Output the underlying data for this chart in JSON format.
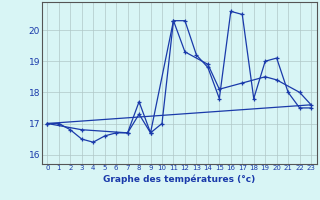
{
  "xlabel": "Graphe des températures (°c)",
  "bg_color": "#d8f5f5",
  "grid_color": "#b0c8c8",
  "line_color": "#1a3aaa",
  "spine_color": "#555555",
  "x_ticks": [
    0,
    1,
    2,
    3,
    4,
    5,
    6,
    7,
    8,
    9,
    10,
    11,
    12,
    13,
    14,
    15,
    16,
    17,
    18,
    19,
    20,
    21,
    22,
    23
  ],
  "xlim": [
    -0.5,
    23.5
  ],
  "ylim": [
    15.7,
    20.9
  ],
  "y_ticks": [
    16,
    17,
    18,
    19,
    20
  ],
  "series1_x": [
    0,
    1,
    2,
    3,
    4,
    5,
    6,
    7,
    8,
    9,
    10,
    11,
    12,
    13,
    14,
    15,
    16,
    17,
    18,
    19,
    20,
    21,
    22,
    23
  ],
  "series1_y": [
    17.0,
    17.0,
    16.8,
    16.5,
    16.4,
    16.6,
    16.7,
    16.7,
    17.3,
    16.7,
    17.0,
    20.3,
    20.3,
    19.2,
    18.8,
    17.8,
    20.6,
    20.5,
    17.8,
    19.0,
    19.1,
    18.0,
    17.5,
    17.5
  ],
  "series2_x": [
    0,
    3,
    7,
    8,
    9,
    11,
    12,
    14,
    15,
    17,
    19,
    20,
    22,
    23
  ],
  "series2_y": [
    17.0,
    16.8,
    16.7,
    17.7,
    16.7,
    20.3,
    19.3,
    18.9,
    18.1,
    18.3,
    18.5,
    18.4,
    18.0,
    17.6
  ],
  "series3_x": [
    0,
    23
  ],
  "series3_y": [
    17.0,
    17.6
  ],
  "xlabel_fontsize": 6.5,
  "xtick_fontsize": 5.0,
  "ytick_fontsize": 6.5
}
